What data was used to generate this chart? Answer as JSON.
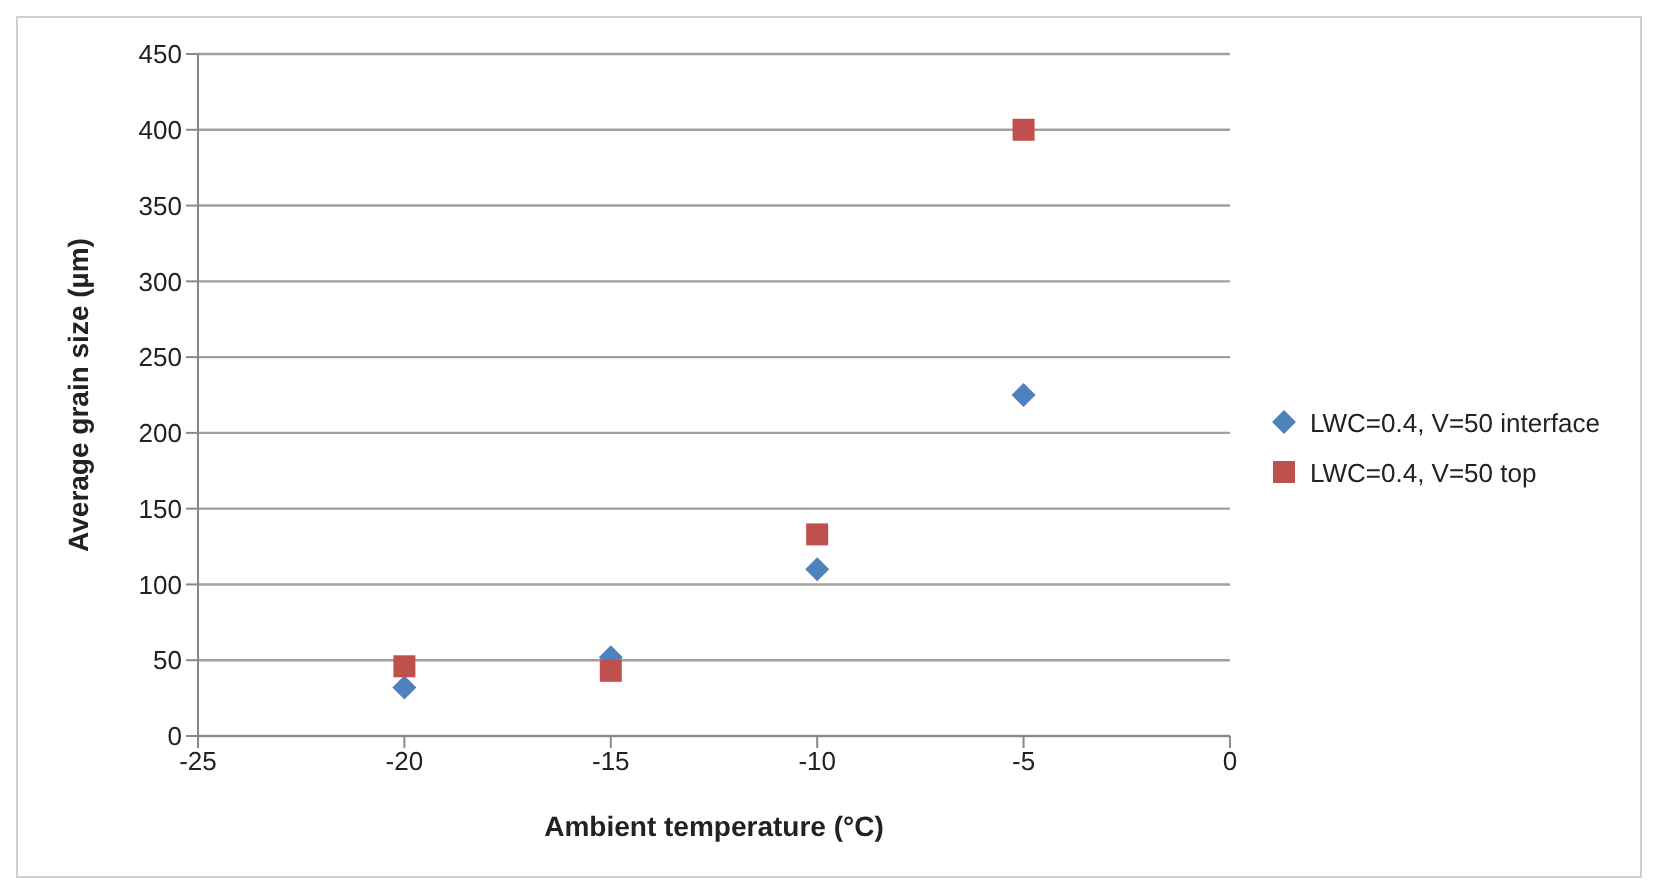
{
  "chart_data": {
    "type": "scatter",
    "xlabel": "Ambient temperature (°C)",
    "ylabel": "Average grain size (µm)",
    "x": [
      -20,
      -15,
      -10,
      -5
    ],
    "series": [
      {
        "name": "LWC=0.4, V=50 interface",
        "color": "#4f81bd",
        "marker": "diamond",
        "values": [
          32,
          52,
          110,
          225
        ]
      },
      {
        "name": "LWC=0.4, V=50 top",
        "color": "#c0504d",
        "marker": "square",
        "values": [
          46,
          43,
          133,
          400
        ]
      }
    ],
    "xlim": [
      -25,
      0
    ],
    "xticks": [
      -25,
      -20,
      -15,
      -10,
      -5,
      0
    ],
    "ylim": [
      0,
      450
    ],
    "yticks": [
      0,
      50,
      100,
      150,
      200,
      250,
      300,
      350,
      400,
      450
    ],
    "grid": "y",
    "legend": "right"
  }
}
